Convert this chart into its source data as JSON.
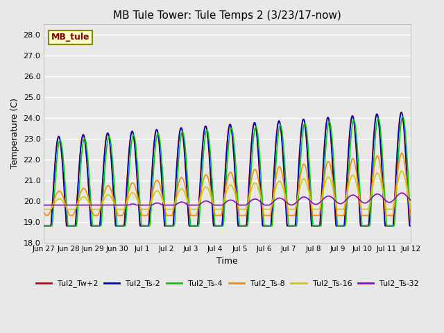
{
  "title": "MB Tule Tower: Tule Temps 2 (3/23/17-now)",
  "xlabel": "Time",
  "ylabel": "Temperature (C)",
  "ylim": [
    18.0,
    28.5
  ],
  "yticks": [
    18.0,
    19.0,
    20.0,
    21.0,
    22.0,
    23.0,
    24.0,
    25.0,
    26.0,
    27.0,
    28.0
  ],
  "background_color": "#e8e8e8",
  "axes_bg_color": "#e8e8e8",
  "grid_color": "#ffffff",
  "series": {
    "Tul2_Tw+2": {
      "color": "#cc0000",
      "lw": 1.2
    },
    "Tul2_Ts-2": {
      "color": "#0000cc",
      "lw": 1.2
    },
    "Tul2_Ts-4": {
      "color": "#00cc00",
      "lw": 1.2
    },
    "Tul2_Ts-8": {
      "color": "#ff8800",
      "lw": 1.2
    },
    "Tul2_Ts-16": {
      "color": "#cccc00",
      "lw": 1.2
    },
    "Tul2_Ts-32": {
      "color": "#9900cc",
      "lw": 1.2
    }
  },
  "xtick_labels": [
    "Jun 27",
    "Jun 28",
    "Jun 29",
    "Jun 30",
    "Jul 1",
    "Jul 2",
    "Jul 3",
    "Jul 4",
    "Jul 5",
    "Jul 6",
    "Jul 7",
    "Jul 8",
    "Jul 9",
    "Jul 10",
    "Jul 11",
    "Jul 12"
  ],
  "n_days": 15,
  "annotation_text": "MB_tule",
  "annotation_color": "#880000",
  "annotation_bg": "#ffffcc",
  "annotation_border": "#888800"
}
